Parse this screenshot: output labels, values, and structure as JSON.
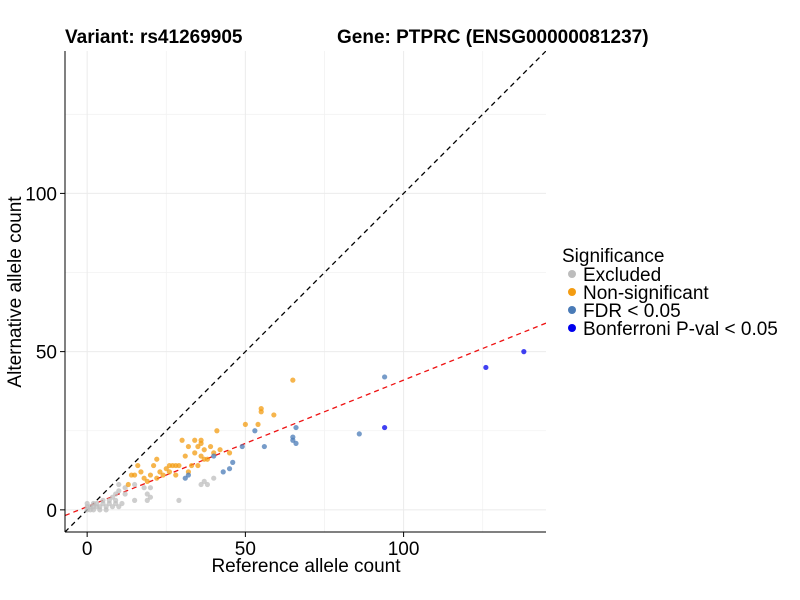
{
  "chart_data": {
    "type": "scatter",
    "title_left": "Variant: rs41269905",
    "title_right": "Gene: PTPRC (ENSG00000081237)",
    "xlabel": "Reference allele count",
    "ylabel": "Alternative allele count",
    "xlim": [
      -7,
      145
    ],
    "ylim": [
      -7,
      145
    ],
    "x_ticks": [
      0,
      50,
      100
    ],
    "y_ticks": [
      0,
      50,
      100
    ],
    "grid": true,
    "legend": {
      "title": "Significance",
      "placement": "right",
      "entries": [
        {
          "label": "Excluded",
          "color": "#bdbdbd"
        },
        {
          "label": "Non-significant",
          "color": "#f39c12"
        },
        {
          "label": "FDR < 0.05",
          "color": "#4a7bb7"
        },
        {
          "label": "Bonferroni P-val < 0.05",
          "color": "#0000ee"
        }
      ]
    },
    "reference_lines": [
      {
        "name": "y = x",
        "style": "dashed",
        "color": "#000000",
        "slope": 1,
        "intercept": 0
      },
      {
        "name": "fit",
        "style": "dashed",
        "color": "#ee1111",
        "slope": 0.4,
        "intercept": 1
      }
    ],
    "series": [
      {
        "name": "Excluded",
        "color": "#bdbdbd",
        "points": [
          [
            0,
            0
          ],
          [
            0,
            1
          ],
          [
            0,
            2
          ],
          [
            1,
            0
          ],
          [
            1,
            1
          ],
          [
            2,
            0
          ],
          [
            2,
            1
          ],
          [
            2,
            2
          ],
          [
            3,
            1
          ],
          [
            3,
            2
          ],
          [
            4,
            0
          ],
          [
            4,
            1
          ],
          [
            5,
            2
          ],
          [
            5,
            3
          ],
          [
            6,
            0
          ],
          [
            6,
            1
          ],
          [
            7,
            2
          ],
          [
            7,
            3
          ],
          [
            8,
            4
          ],
          [
            8,
            1
          ],
          [
            9,
            2
          ],
          [
            9,
            3
          ],
          [
            9,
            5
          ],
          [
            10,
            1
          ],
          [
            10,
            6
          ],
          [
            10,
            8
          ],
          [
            11,
            2
          ],
          [
            12,
            5
          ],
          [
            12,
            7
          ],
          [
            15,
            3
          ],
          [
            15,
            8
          ],
          [
            18,
            7
          ],
          [
            19,
            3
          ],
          [
            19,
            5
          ],
          [
            20,
            4
          ],
          [
            20,
            7
          ],
          [
            29,
            3
          ],
          [
            36,
            8
          ],
          [
            37,
            9
          ],
          [
            38,
            8
          ],
          [
            40,
            10
          ]
        ]
      },
      {
        "name": "Non-significant",
        "color": "#f39c12",
        "points": [
          [
            13,
            8
          ],
          [
            14,
            11
          ],
          [
            15,
            11
          ],
          [
            16,
            14
          ],
          [
            17,
            12
          ],
          [
            18,
            10
          ],
          [
            19,
            9
          ],
          [
            20,
            11
          ],
          [
            21,
            14
          ],
          [
            22,
            10
          ],
          [
            22,
            16
          ],
          [
            23,
            12
          ],
          [
            24,
            11
          ],
          [
            25,
            13
          ],
          [
            26,
            12
          ],
          [
            26,
            14
          ],
          [
            27,
            14
          ],
          [
            28,
            11
          ],
          [
            28,
            14
          ],
          [
            29,
            14
          ],
          [
            30,
            22
          ],
          [
            31,
            17
          ],
          [
            32,
            20
          ],
          [
            32,
            12
          ],
          [
            33,
            14
          ],
          [
            34,
            18
          ],
          [
            34,
            22
          ],
          [
            35,
            20
          ],
          [
            35,
            14
          ],
          [
            36,
            17
          ],
          [
            36,
            21
          ],
          [
            36,
            22
          ],
          [
            37,
            16
          ],
          [
            37,
            19
          ],
          [
            38,
            16
          ],
          [
            39,
            20
          ],
          [
            40,
            18
          ],
          [
            41,
            25
          ],
          [
            42,
            19
          ],
          [
            45,
            18
          ],
          [
            50,
            27
          ],
          [
            54,
            27
          ],
          [
            55,
            31
          ],
          [
            55,
            32
          ],
          [
            59,
            30
          ],
          [
            65,
            41
          ]
        ]
      },
      {
        "name": "FDR < 0.05",
        "color": "#4a7bb7",
        "points": [
          [
            31,
            10
          ],
          [
            32,
            11
          ],
          [
            40,
            17
          ],
          [
            43,
            12
          ],
          [
            45,
            13
          ],
          [
            46,
            15
          ],
          [
            49,
            20
          ],
          [
            53,
            25
          ],
          [
            56,
            20
          ],
          [
            65,
            22
          ],
          [
            65,
            23
          ],
          [
            66,
            21
          ],
          [
            66,
            26
          ],
          [
            86,
            24
          ],
          [
            94,
            42
          ]
        ]
      },
      {
        "name": "Bonferroni P-val < 0.05",
        "color": "#0000ee",
        "points": [
          [
            94,
            26
          ],
          [
            126,
            45
          ],
          [
            138,
            50
          ]
        ]
      }
    ]
  }
}
